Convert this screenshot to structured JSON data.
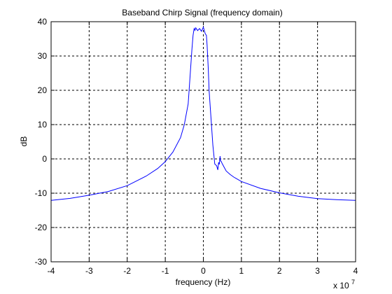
{
  "chart_data": {
    "type": "line",
    "title": "Baseband Chirp Signal (frequency domain)",
    "xlabel": "frequency (Hz)",
    "ylabel": "dB",
    "x_exponent_label": "x 10",
    "x_exponent_power": "7",
    "xlim": [
      -4,
      4
    ],
    "ylim": [
      -30,
      40
    ],
    "xticks": [
      -4,
      -3,
      -2,
      -1,
      0,
      1,
      2,
      3,
      4
    ],
    "xtick_labels": [
      "-4",
      "-3",
      "-2",
      "-1",
      "0",
      "1",
      "2",
      "3",
      "4"
    ],
    "yticks": [
      -30,
      -20,
      -10,
      0,
      10,
      20,
      30,
      40
    ],
    "ytick_labels": [
      "-30",
      "-20",
      "-10",
      "0",
      "10",
      "20",
      "30",
      "40"
    ],
    "grid": true,
    "series": [
      {
        "color": "#0000ff",
        "x": [
          -4.0,
          -3.5,
          -3.0,
          -2.5,
          -2.0,
          -1.5,
          -1.2,
          -1.0,
          -0.8,
          -0.6,
          -0.5,
          -0.4,
          -0.35,
          -0.3,
          -0.27,
          -0.25,
          -0.24,
          -0.22,
          -0.2,
          -0.15,
          -0.1,
          -0.05,
          0.0,
          0.05,
          0.08,
          0.1,
          0.13,
          0.15,
          0.2,
          0.25,
          0.3,
          0.35,
          0.38,
          0.4,
          0.42,
          0.44,
          0.45,
          0.47,
          0.5,
          0.55,
          0.6,
          0.7,
          0.8,
          1.0,
          1.5,
          2.0,
          2.5,
          3.0,
          3.5,
          4.0
        ],
        "y": [
          -12.1,
          -11.5,
          -10.6,
          -9.5,
          -7.8,
          -5.0,
          -2.8,
          -0.8,
          2.0,
          6.2,
          10.0,
          16.0,
          24.0,
          32.0,
          36.0,
          37.5,
          38.0,
          37.5,
          38.2,
          37.4,
          38.0,
          37.2,
          38.4,
          36.5,
          36.0,
          33.0,
          26.0,
          20.0,
          12.0,
          4.0,
          -1.5,
          -2.0,
          -3.2,
          -1.0,
          -1.6,
          0.8,
          -0.5,
          -0.8,
          -1.5,
          -2.5,
          -3.5,
          -4.5,
          -5.3,
          -6.6,
          -8.6,
          -9.9,
          -10.9,
          -11.6,
          -11.9,
          -12.1
        ]
      }
    ]
  }
}
